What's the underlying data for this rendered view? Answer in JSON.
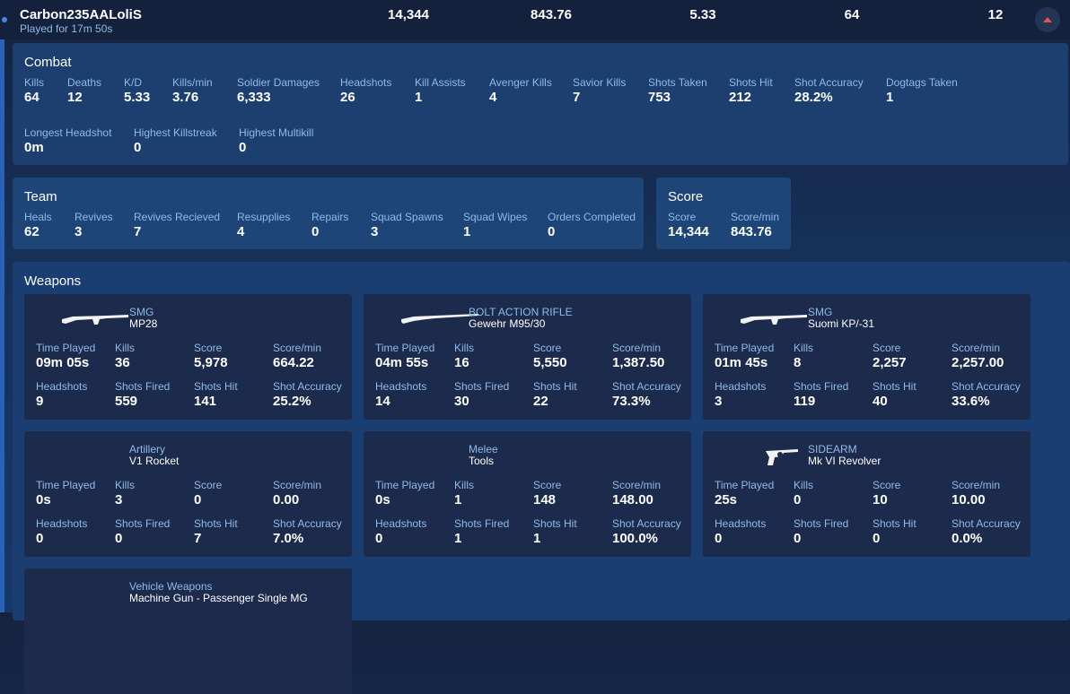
{
  "player": {
    "name": "Carbon235AALoliS",
    "played_for": "Played for 17m 50s",
    "header_stats": [
      "14,344",
      "843.76",
      "5.33",
      "64",
      "12"
    ]
  },
  "combat": {
    "title": "Combat",
    "stats": [
      {
        "label": "Kills",
        "value": "64"
      },
      {
        "label": "Deaths",
        "value": "12"
      },
      {
        "label": "K/D",
        "value": "5.33"
      },
      {
        "label": "Kills/min",
        "value": "3.76"
      },
      {
        "label": "Soldier Damages",
        "value": "6,333"
      },
      {
        "label": "Headshots",
        "value": "26"
      },
      {
        "label": "Kill Assists",
        "value": "1"
      },
      {
        "label": "Avenger Kills",
        "value": "4"
      },
      {
        "label": "Savior Kills",
        "value": "7"
      },
      {
        "label": "Shots Taken",
        "value": "753"
      },
      {
        "label": "Shots Hit",
        "value": "212"
      },
      {
        "label": "Shot Accuracy",
        "value": "28.2%"
      },
      {
        "label": "Dogtags Taken",
        "value": "1"
      },
      {
        "label": "Longest Headshot",
        "value": "0m"
      },
      {
        "label": "Highest Killstreak",
        "value": "0"
      },
      {
        "label": "Highest Multikill",
        "value": "0"
      }
    ]
  },
  "team": {
    "title": "Team",
    "stats": [
      {
        "label": "Heals",
        "value": "62"
      },
      {
        "label": "Revives",
        "value": "3"
      },
      {
        "label": "Revives Recieved",
        "value": "7"
      },
      {
        "label": "Resupplies",
        "value": "4"
      },
      {
        "label": "Repairs",
        "value": "0"
      },
      {
        "label": "Squad Spawns",
        "value": "3"
      },
      {
        "label": "Squad Wipes",
        "value": "1"
      },
      {
        "label": "Orders Completed",
        "value": "0"
      }
    ]
  },
  "score": {
    "title": "Score",
    "stats": [
      {
        "label": "Score",
        "value": "14,344"
      },
      {
        "label": "Score/min",
        "value": "843.76"
      }
    ]
  },
  "weapons": {
    "title": "Weapons",
    "stat_labels": [
      "Time Played",
      "Kills",
      "Score",
      "Score/min",
      "Headshots",
      "Shots Fired",
      "Shots Hit",
      "Shot Accuracy"
    ],
    "cards": [
      {
        "category": "SMG",
        "name": "MP28",
        "icon": "smg-icon",
        "values": [
          "09m 05s",
          "36",
          "5,978",
          "664.22",
          "9",
          "559",
          "141",
          "25.2%"
        ]
      },
      {
        "category": "BOLT ACTION RIFLE",
        "name": "Gewehr M95/30",
        "icon": "rifle-icon",
        "values": [
          "04m 55s",
          "16",
          "5,550",
          "1,387.50",
          "14",
          "30",
          "22",
          "73.3%"
        ]
      },
      {
        "category": "SMG",
        "name": "Suomi KP/-31",
        "icon": "smg-icon",
        "values": [
          "01m 45s",
          "8",
          "2,257",
          "2,257.00",
          "3",
          "119",
          "40",
          "33.6%"
        ]
      },
      {
        "category": "Artillery",
        "name": "V1 Rocket",
        "icon": "",
        "values": [
          "0s",
          "3",
          "0",
          "0.00",
          "0",
          "0",
          "7",
          "7.0%"
        ]
      },
      {
        "category": "Melee",
        "name": "Tools",
        "icon": "",
        "values": [
          "0s",
          "1",
          "148",
          "148.00",
          "0",
          "1",
          "1",
          "100.0%"
        ]
      },
      {
        "category": "SIDEARM",
        "name": "Mk VI Revolver",
        "icon": "revolver-icon",
        "values": [
          "25s",
          "0",
          "10",
          "10.00",
          "0",
          "0",
          "0",
          "0.0%"
        ]
      },
      {
        "category": "Vehicle Weapons",
        "name": "Machine Gun - Passenger Single MG",
        "icon": "",
        "values": []
      }
    ]
  },
  "colors": {
    "accent": "#8fbbe8",
    "panel": "#1e4478",
    "card": "#1c2a4b",
    "caret": "#e8534a"
  }
}
